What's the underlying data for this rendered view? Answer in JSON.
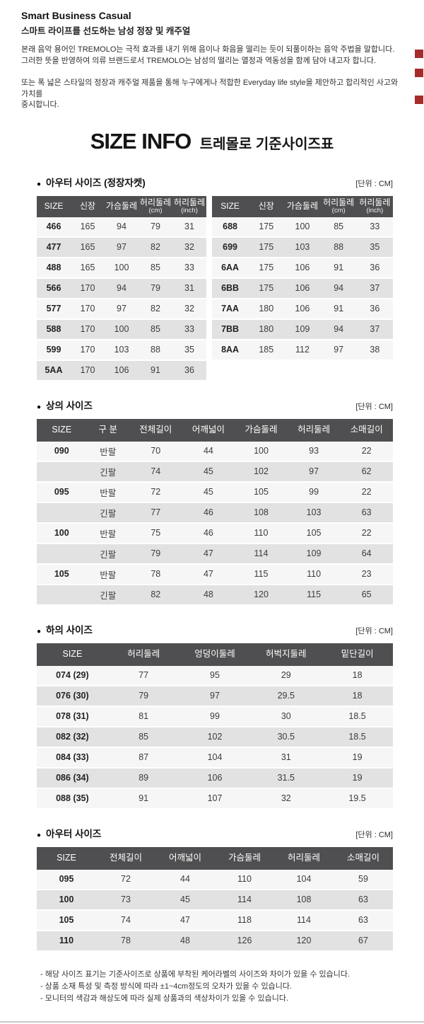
{
  "page": {
    "brand_title": "Smart Business Casual",
    "brand_subtitle": "스마트 라이프를 선도하는 남성 정장 및 캐주얼",
    "intro_paragraph_1": "본래 음악 용어인 TREMOLO는 극적 효과를 내기 위해 음이나 화음을 떨리는 듯이 되풀이하는 음악 주법을 말합니다.\n그러한 뜻을 반영하여 의류 브랜드로서 TREMOLO는 남성의 떨리는 열정과 역동성을 함께 담아 내고자 합니다.",
    "intro_paragraph_2": "또는 폭 넓은 스타일의 정장과 캐주얼 제품을 통해 누구에게나 적합한 Everyday life style을 제안하고 합리적인 사고와 가치를\n중시합니다.",
    "title_en": "SIZE INFO",
    "title_ko": "트레몰로 기준사이즈표",
    "bullet_icon": "●"
  },
  "colors": {
    "table_header_bg": "#4f4f51",
    "row_light": "#f6f6f6",
    "row_dark": "#e2e2e2",
    "red_mark": "#a62c2b",
    "bottom_divider": "#c9c9c9"
  },
  "sections": {
    "outer_jacket": {
      "title": "아우터 사이즈 (정장자켓)",
      "unit": "[단위 : CM]",
      "table_left": {
        "headers": [
          {
            "t": "SIZE"
          },
          {
            "t": "신장"
          },
          {
            "t": "가슴둘레"
          },
          {
            "t": "허리둘레",
            "s": "(cm)"
          },
          {
            "t": "허리둘레",
            "s": "(inch)"
          }
        ],
        "rows": [
          [
            "466",
            "165",
            "94",
            "79",
            "31"
          ],
          [
            "477",
            "165",
            "97",
            "82",
            "32"
          ],
          [
            "488",
            "165",
            "100",
            "85",
            "33"
          ],
          [
            "566",
            "170",
            "94",
            "79",
            "31"
          ],
          [
            "577",
            "170",
            "97",
            "82",
            "32"
          ],
          [
            "588",
            "170",
            "100",
            "85",
            "33"
          ],
          [
            "599",
            "170",
            "103",
            "88",
            "35"
          ],
          [
            "5AA",
            "170",
            "106",
            "91",
            "36"
          ]
        ]
      },
      "table_right": {
        "headers": [
          {
            "t": "SIZE"
          },
          {
            "t": "신장"
          },
          {
            "t": "가슴둘레"
          },
          {
            "t": "허리둘레",
            "s": "(cm)"
          },
          {
            "t": "허리둘레",
            "s": "(inch)"
          }
        ],
        "rows": [
          [
            "688",
            "175",
            "100",
            "85",
            "33"
          ],
          [
            "699",
            "175",
            "103",
            "88",
            "35"
          ],
          [
            "6AA",
            "175",
            "106",
            "91",
            "36"
          ],
          [
            "6BB",
            "175",
            "106",
            "94",
            "37"
          ],
          [
            "7AA",
            "180",
            "106",
            "91",
            "36"
          ],
          [
            "7BB",
            "180",
            "109",
            "94",
            "37"
          ],
          [
            "8AA",
            "185",
            "112",
            "97",
            "38"
          ]
        ]
      }
    },
    "tops": {
      "title": "상의 사이즈",
      "unit": "[단위 : CM]",
      "table": {
        "headers": [
          {
            "t": "SIZE"
          },
          {
            "t": "구 분"
          },
          {
            "t": "전체길이"
          },
          {
            "t": "어깨넓이"
          },
          {
            "t": "가슴둘레"
          },
          {
            "t": "허리둘레"
          },
          {
            "t": "소매길이"
          }
        ],
        "rows": [
          [
            "090",
            "반팔",
            "70",
            "44",
            "100",
            "93",
            "22"
          ],
          [
            "",
            "긴팔",
            "74",
            "45",
            "102",
            "97",
            "62"
          ],
          [
            "095",
            "반팔",
            "72",
            "45",
            "105",
            "99",
            "22"
          ],
          [
            "",
            "긴팔",
            "77",
            "46",
            "108",
            "103",
            "63"
          ],
          [
            "100",
            "반팔",
            "75",
            "46",
            "110",
            "105",
            "22"
          ],
          [
            "",
            "긴팔",
            "79",
            "47",
            "114",
            "109",
            "64"
          ],
          [
            "105",
            "반팔",
            "78",
            "47",
            "115",
            "110",
            "23"
          ],
          [
            "",
            "긴팔",
            "82",
            "48",
            "120",
            "115",
            "65"
          ]
        ]
      }
    },
    "bottoms": {
      "title": "하의 사이즈",
      "unit": "[단위 : CM]",
      "table": {
        "headers": [
          {
            "t": "SIZE"
          },
          {
            "t": "허리둘레"
          },
          {
            "t": "엉덩이둘레"
          },
          {
            "t": "허벅지둘레"
          },
          {
            "t": "밑단길이"
          }
        ],
        "rows": [
          [
            "074 (29)",
            "77",
            "95",
            "29",
            "18"
          ],
          [
            "076 (30)",
            "79",
            "97",
            "29.5",
            "18"
          ],
          [
            "078 (31)",
            "81",
            "99",
            "30",
            "18.5"
          ],
          [
            "082 (32)",
            "85",
            "102",
            "30.5",
            "18.5"
          ],
          [
            "084 (33)",
            "87",
            "104",
            "31",
            "19"
          ],
          [
            "086 (34)",
            "89",
            "106",
            "31.5",
            "19"
          ],
          [
            "088 (35)",
            "91",
            "107",
            "32",
            "19.5"
          ]
        ]
      }
    },
    "outerwear": {
      "title": "아우터 사이즈",
      "unit": "[단위 : CM]",
      "table": {
        "headers": [
          {
            "t": "SIZE"
          },
          {
            "t": "전체길이"
          },
          {
            "t": "어깨넓이"
          },
          {
            "t": "가슴둘레"
          },
          {
            "t": "허리둘레"
          },
          {
            "t": "소매길이"
          }
        ],
        "rows": [
          [
            "095",
            "72",
            "44",
            "110",
            "104",
            "59"
          ],
          [
            "100",
            "73",
            "45",
            "114",
            "108",
            "63"
          ],
          [
            "105",
            "74",
            "47",
            "118",
            "114",
            "63"
          ],
          [
            "110",
            "78",
            "48",
            "126",
            "120",
            "67"
          ]
        ]
      }
    }
  },
  "notes": {
    "line1": "- 해당 사이즈 표기는 기준사이즈로 상품에 부착된 케어라벨의 사이즈와 차이가 있을 수 있습니다.",
    "line2": "- 상품 소재 특성 및 측정 방식에 따라 ±1~4cm정도의 오차가 있을 수 있습니다.",
    "line3": "- 모니터의 색감과 해상도에 따라 실제 상품과의 색상차이가 있을 수 있습니다."
  }
}
